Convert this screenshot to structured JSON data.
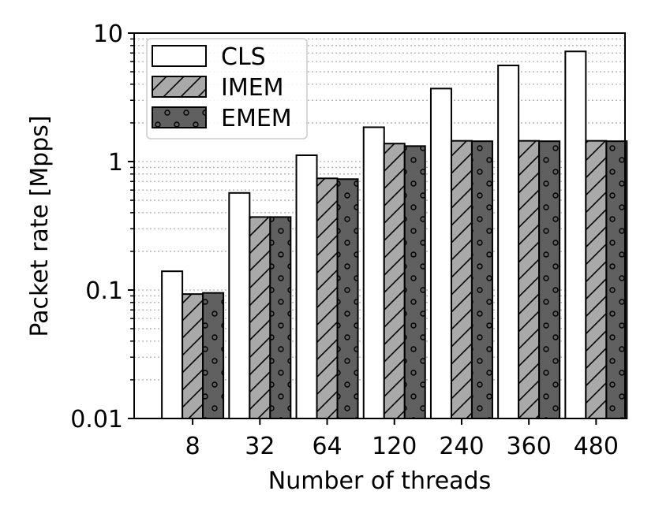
{
  "chart_data": {
    "type": "bar",
    "title": "",
    "xlabel": "Number of threads",
    "ylabel": "Packet rate [Mpps]",
    "yscale": "log",
    "ylim": [
      0.01,
      10
    ],
    "ytick_labels": [
      "0.01",
      "0.1",
      "1",
      "10"
    ],
    "grid": "y-major-and-minor-dotted",
    "legend_position": "top-left",
    "categories": [
      "8",
      "32",
      "64",
      "120",
      "240",
      "360",
      "480"
    ],
    "series": [
      {
        "name": "CLS",
        "fill": "#ffffff",
        "hatch": "none",
        "values": [
          0.14,
          0.57,
          1.12,
          1.85,
          3.7,
          5.6,
          7.2
        ]
      },
      {
        "name": "IMEM",
        "fill": "#a9a9a9",
        "hatch": "slash",
        "values": [
          0.093,
          0.37,
          0.74,
          1.38,
          1.45,
          1.45,
          1.45
        ]
      },
      {
        "name": "EMEM",
        "fill": "#606060",
        "hatch": "dots",
        "values": [
          0.095,
          0.37,
          0.73,
          1.32,
          1.44,
          1.44,
          1.44
        ]
      }
    ]
  }
}
